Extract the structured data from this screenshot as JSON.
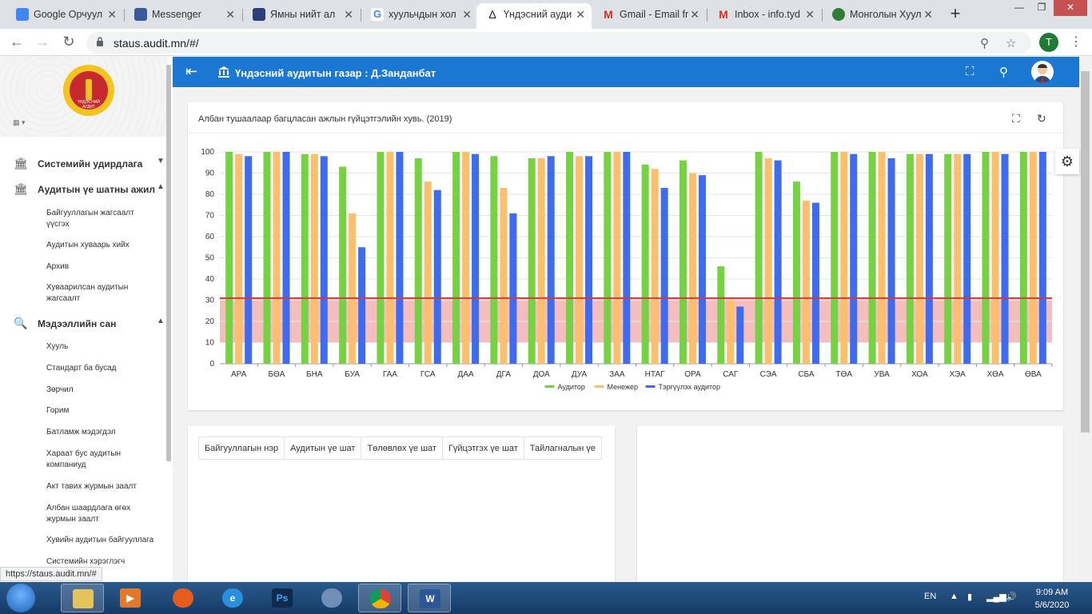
{
  "browser": {
    "tabs": [
      {
        "title": "Google Орчуул",
        "fav_color": "#4285f4"
      },
      {
        "title": "Messenger",
        "fav_color": "#3b5998"
      },
      {
        "title": "Ямны нийт ал",
        "fav_color": "#2a3f7a"
      },
      {
        "title": "хуульчдын хол",
        "fav_color": "#4285f4"
      },
      {
        "title": "Үндэсний ауди",
        "fav_color": "#222222"
      },
      {
        "title": "Gmail - Email fr",
        "fav_color": "#d93025"
      },
      {
        "title": "Inbox - info.tyd",
        "fav_color": "#d93025"
      },
      {
        "title": "Монголын Хуул",
        "fav_color": "#2e7d32"
      }
    ],
    "url": "staus.audit.mn/#/",
    "profile_initial": "T",
    "status_url": "https://staus.audit.mn/#"
  },
  "app": {
    "title": "Үндэсний аудитын газар : Д.Занданбат",
    "brand_color": "#1a78d2",
    "logo_text": "ҮНДЭСНИЙ АУДИТ"
  },
  "sidebar": {
    "groups": [
      {
        "label": "Системийн удирдлага",
        "icon": "bank-icon"
      },
      {
        "label": "Аудитын үе шатны ажил",
        "icon": "bank-icon"
      },
      {
        "label": "Мэдээллийн сан",
        "icon": "search-icon"
      }
    ],
    "items": [
      "Байгууллагын жагсаалт үүсгэх",
      "Аудитын хуваарь хийх",
      "Архив",
      "Хуваарилсан аудитын жагсаалт",
      "Хууль",
      "Стандарт ба бусад",
      "Зөрчил",
      "Горим",
      "Батламж мэдэгдэл",
      "Хараат бус аудитын компаниуд",
      "Акт тавих журмын заалт",
      "Албан шаардлага өгөх журмын заалт",
      "Хувийн аудитын байгууллага",
      "Системийн хэрэглэгч"
    ]
  },
  "chart_card": {
    "title": "Албан тушаалаар багцласан ажлын гүйцэтгэлийн хувь. (2019)"
  },
  "chart_data": {
    "type": "bar",
    "categories": [
      "АРА",
      "БӨА",
      "БНА",
      "БУА",
      "ГАА",
      "ГСА",
      "ДАА",
      "ДГА",
      "ДОА",
      "ДУА",
      "ЗАА",
      "НТАГ",
      "ОРА",
      "САГ",
      "СЭА",
      "СБА",
      "ТӨА",
      "УВА",
      "ХОА",
      "ХЭА",
      "ХӨА",
      "ӨВА"
    ],
    "series": [
      {
        "name": "Аудитор",
        "color": "#77d243",
        "values": [
          100,
          100,
          99,
          93,
          100,
          97,
          100,
          98,
          97,
          100,
          100,
          94,
          96,
          46,
          100,
          86,
          100,
          100,
          99,
          99,
          100,
          100
        ]
      },
      {
        "name": "Менежер",
        "color": "#fbbf6e",
        "values": [
          99,
          100,
          99,
          71,
          100,
          86,
          100,
          83,
          97,
          98,
          100,
          92,
          90,
          30,
          97,
          77,
          100,
          100,
          99,
          99,
          100,
          100
        ]
      },
      {
        "name": "Тэргүүлэх аудитор",
        "color": "#3e6bf0",
        "values": [
          98,
          100,
          98,
          55,
          100,
          82,
          99,
          71,
          98,
          98,
          100,
          83,
          89,
          27,
          96,
          76,
          99,
          97,
          99,
          99,
          99,
          100
        ]
      }
    ],
    "ylim": [
      0,
      100
    ],
    "yticks": [
      0,
      10,
      20,
      30,
      40,
      50,
      60,
      70,
      80,
      90,
      100
    ],
    "threshold": {
      "value": 31,
      "band": [
        10,
        31
      ],
      "line_color": "#d33b3b",
      "band_color": "#f2b3b3"
    },
    "legend_position": "bottom-center"
  },
  "table": {
    "headers": [
      "Байгууллагын нэр",
      "Аудитын үе шат",
      "Төлөвлөх үе шат",
      "Гүйцэтгэх үе шат",
      "Тайлагналын үе"
    ]
  },
  "taskbar": {
    "lang": "EN",
    "time": "9:09 AM",
    "date": "5/6/2020"
  }
}
